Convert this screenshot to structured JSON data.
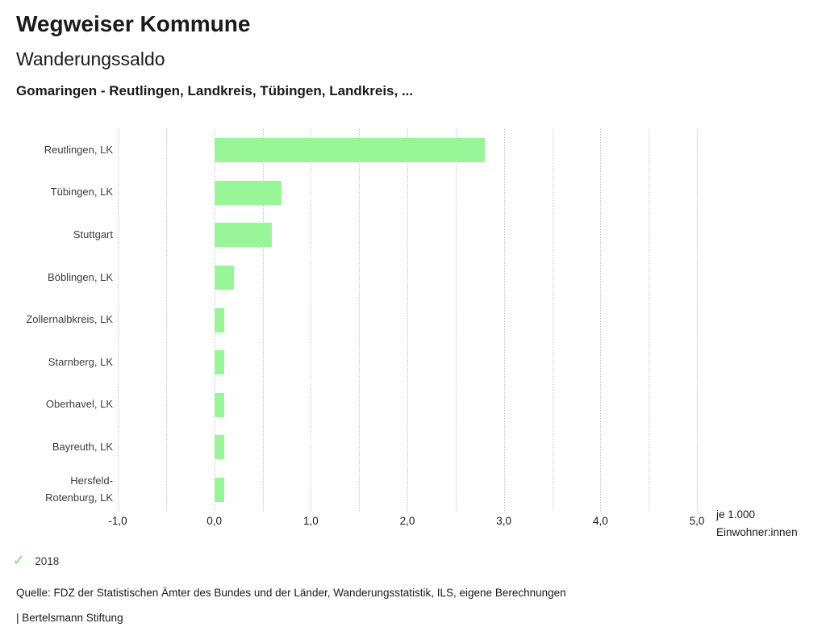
{
  "header": {
    "title": "Wegweiser Kommune",
    "subtitle": "Wanderungssaldo",
    "comparison": "Gomaringen - Reutlingen, Landkreis, Tübingen, Landkreis, ..."
  },
  "chart_data": {
    "type": "bar",
    "orientation": "horizontal",
    "title": "Wanderungssaldo",
    "categories": [
      "Reutlingen, LK",
      "Tübingen, LK",
      "Stuttgart",
      "Böblingen, LK",
      "Zollernalbkreis, LK",
      "Starnberg, LK",
      "Oberhavel, LK",
      "Bayreuth, LK",
      "Hersfeld-Rotenburg, LK"
    ],
    "values": [
      2.8,
      0.7,
      0.6,
      0.2,
      0.1,
      0.1,
      0.1,
      0.1,
      0.1
    ],
    "series_name": "2018",
    "xlabel": "je 1.000 Einwohner:innen",
    "ylabel": "",
    "xlim": [
      -1.0,
      5.0
    ],
    "x_tick_values": [
      -1,
      0,
      1,
      2,
      3,
      4,
      5
    ],
    "x_ticks": [
      "-1,0",
      "0,0",
      "1,0",
      "2,0",
      "3,0",
      "4,0",
      "5,0"
    ],
    "gridline_step": 0.5,
    "grid": true,
    "legend_position": "bottom",
    "bar_color": "#98f598",
    "grid_color": "#c3c3c3"
  },
  "axis_unit": {
    "line1": "je 1.000",
    "line2": "Einwohner:innen"
  },
  "legend": {
    "check_icon": "✓",
    "check_color": "#8ce88c",
    "year": "2018"
  },
  "footer": {
    "source": "Quelle: FDZ der Statistischen Ämter des Bundes und der Länder, Wanderungsstatistik, ILS, eigene Berechnungen",
    "brand": "| Bertelsmann Stiftung"
  }
}
